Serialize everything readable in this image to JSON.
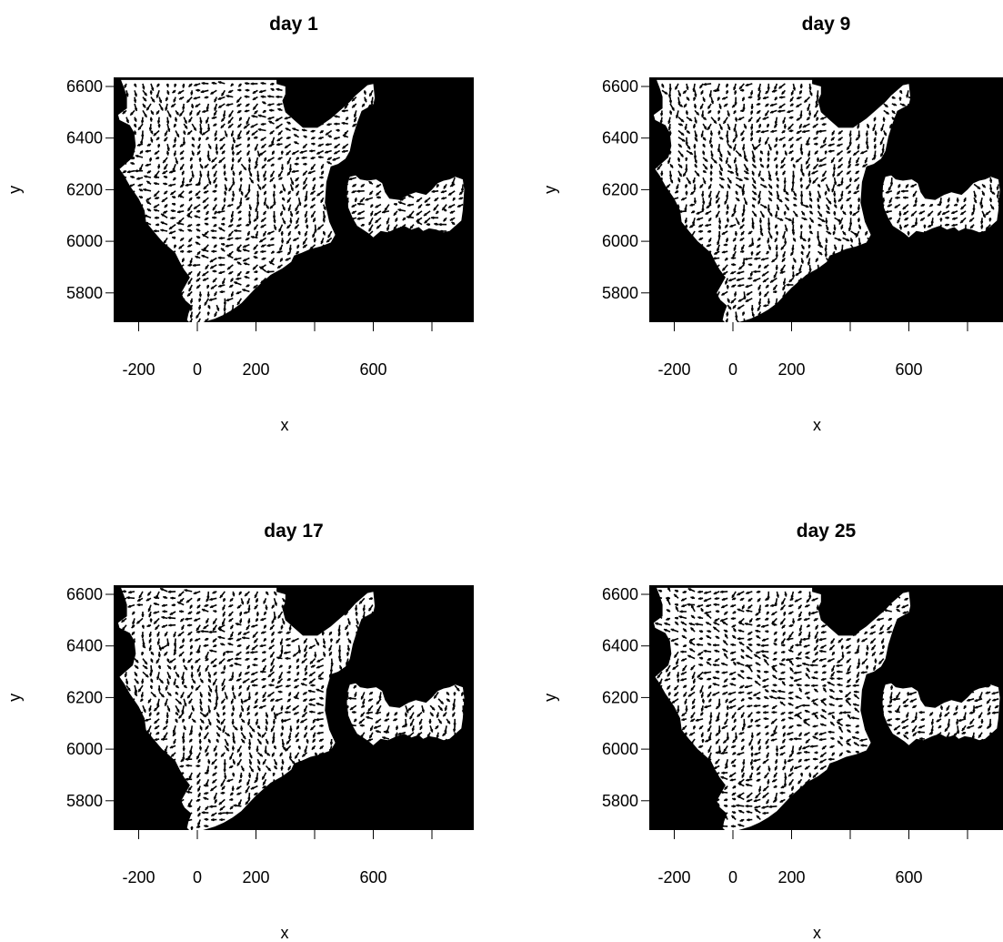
{
  "figure": {
    "layout": "2x2 grid of panels",
    "background_color": "#ffffff",
    "plot_background_color": "#000000",
    "vector_color": "#ffffff",
    "font_color": "#000000"
  },
  "chart_data": [
    {
      "type": "vector-field",
      "title": "day  1",
      "xlabel": "x",
      "ylabel": "y",
      "x_ticks": [
        -200,
        0,
        200,
        400,
        600,
        800
      ],
      "x_tick_labels": [
        "-200",
        "0",
        "200",
        "",
        "600",
        ""
      ],
      "y_ticks": [
        5800,
        6000,
        6200,
        6400,
        6600
      ],
      "y_tick_labels": [
        "5800",
        "6000",
        "6200",
        "6400",
        "6600"
      ],
      "xlim": [
        -290,
        940
      ],
      "ylim": [
        5660,
        6630
      ],
      "grid": false,
      "legend": "none",
      "representative_arrow_angle_deg": 225
    },
    {
      "type": "vector-field",
      "title": "day  9",
      "xlabel": "x",
      "ylabel": "y",
      "x_ticks": [
        -200,
        0,
        200,
        400,
        600,
        800
      ],
      "x_tick_labels": [
        "-200",
        "0",
        "200",
        "",
        "600",
        ""
      ],
      "y_ticks": [
        5800,
        6000,
        6200,
        6400,
        6600
      ],
      "y_tick_labels": [
        "5800",
        "6000",
        "6200",
        "6400",
        "6600"
      ],
      "xlim": [
        -290,
        940
      ],
      "ylim": [
        5660,
        6630
      ],
      "grid": false,
      "legend": "none",
      "representative_arrow_angle_deg": 260
    },
    {
      "type": "vector-field",
      "title": "day  17",
      "xlabel": "x",
      "ylabel": "y",
      "x_ticks": [
        -200,
        0,
        200,
        400,
        600,
        800
      ],
      "x_tick_labels": [
        "-200",
        "0",
        "200",
        "",
        "600",
        ""
      ],
      "y_ticks": [
        5800,
        6000,
        6200,
        6400,
        6600
      ],
      "y_tick_labels": [
        "5800",
        "6000",
        "6200",
        "6400",
        "6600"
      ],
      "xlim": [
        -290,
        940
      ],
      "ylim": [
        5660,
        6630
      ],
      "grid": false,
      "legend": "none",
      "representative_arrow_angle_deg": 240
    },
    {
      "type": "vector-field",
      "title": "day  25",
      "xlabel": "x",
      "ylabel": "y",
      "x_ticks": [
        -200,
        0,
        200,
        400,
        600,
        800
      ],
      "x_tick_labels": [
        "-200",
        "0",
        "200",
        "",
        "600",
        ""
      ],
      "y_ticks": [
        5800,
        6000,
        6200,
        6400,
        6600
      ],
      "y_tick_labels": [
        "5800",
        "6000",
        "6200",
        "6400",
        "6600"
      ],
      "xlim": [
        -290,
        940
      ],
      "ylim": [
        5660,
        6630
      ],
      "grid": false,
      "legend": "none",
      "representative_arrow_angle_deg": 200
    }
  ]
}
